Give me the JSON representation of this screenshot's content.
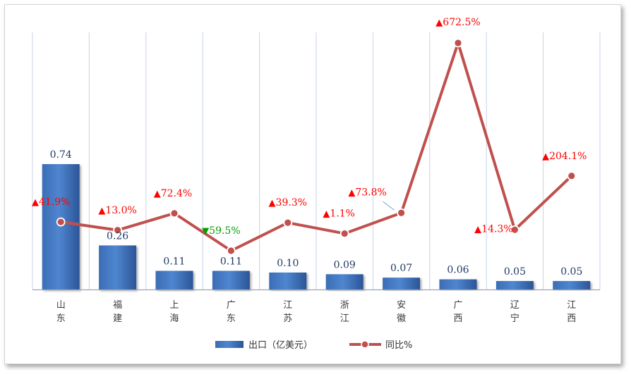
{
  "chart_data": {
    "type": "bar",
    "categories": [
      "山东",
      "福建",
      "上海",
      "广东",
      "江苏",
      "浙江",
      "安徽",
      "广西",
      "辽宁",
      "江西"
    ],
    "series": [
      {
        "name": "出口（亿美元）",
        "type": "bar",
        "values": [
          0.74,
          0.26,
          0.11,
          0.11,
          0.1,
          0.09,
          0.07,
          0.06,
          0.05,
          0.05
        ],
        "labels": [
          "0.74",
          "0.26",
          "0.11",
          "0.11",
          "0.10",
          "0.09",
          "0.07",
          "0.06",
          "0.05",
          "0.05"
        ],
        "color": "#3e74c1"
      },
      {
        "name": "同比%",
        "type": "line",
        "values": [
          41.9,
          13.0,
          72.4,
          -59.5,
          39.3,
          1.1,
          73.8,
          672.5,
          14.3,
          204.1
        ],
        "labels": [
          "41.9%",
          "13.0%",
          "72.4%",
          "59.5%",
          "39.3%",
          "1.1%",
          "73.8%",
          "672.5%",
          "14.3%",
          "204.1%"
        ],
        "color": "#c0504d"
      }
    ],
    "up_color": "#ff0000",
    "down_color": "#00a000",
    "legend": "bottom"
  }
}
